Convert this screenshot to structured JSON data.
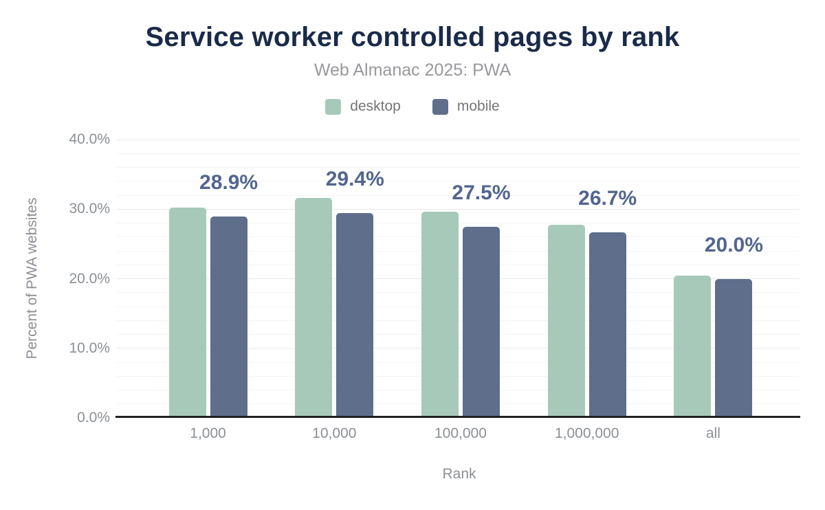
{
  "chart_data": {
    "type": "bar",
    "title": "Service worker controlled pages by rank",
    "subtitle": "Web Almanac 2025: PWA",
    "xlabel": "Rank",
    "ylabel": "Percent of PWA websites",
    "categories": [
      "1,000",
      "10,000",
      "100,000",
      "1,000,000",
      "all"
    ],
    "series": [
      {
        "name": "desktop",
        "color": "#a7c9b9",
        "values": [
          30.2,
          31.6,
          29.6,
          27.8,
          20.4
        ]
      },
      {
        "name": "mobile",
        "color": "#5e6e8b",
        "values": [
          28.9,
          29.4,
          27.5,
          26.7,
          20.0
        ]
      }
    ],
    "annotations": [
      "28.9%",
      "29.4%",
      "27.5%",
      "26.7%",
      "20.0%"
    ],
    "annotation_series": "mobile",
    "ylim": [
      0,
      40
    ],
    "yticks": [
      {
        "value": 0,
        "label": "0.0%"
      },
      {
        "value": 10,
        "label": "10.0%"
      },
      {
        "value": 20,
        "label": "20.0%"
      },
      {
        "value": 30,
        "label": "30.0%"
      },
      {
        "value": 40,
        "label": "40.0%"
      }
    ],
    "grid": {
      "major_step": 10,
      "minor_step": 2,
      "visible": true
    },
    "legend_position": "top",
    "colors": {
      "title": "#1a2b49",
      "subtitle": "#98999c",
      "axis_text": "#8b8f94",
      "legend_text": "#757575",
      "annotation": "#51658f",
      "grid_major": "#e8e8e8",
      "grid_minor": "#f4f4f4",
      "axis_line": "#212121",
      "background": "#ffffff"
    }
  }
}
